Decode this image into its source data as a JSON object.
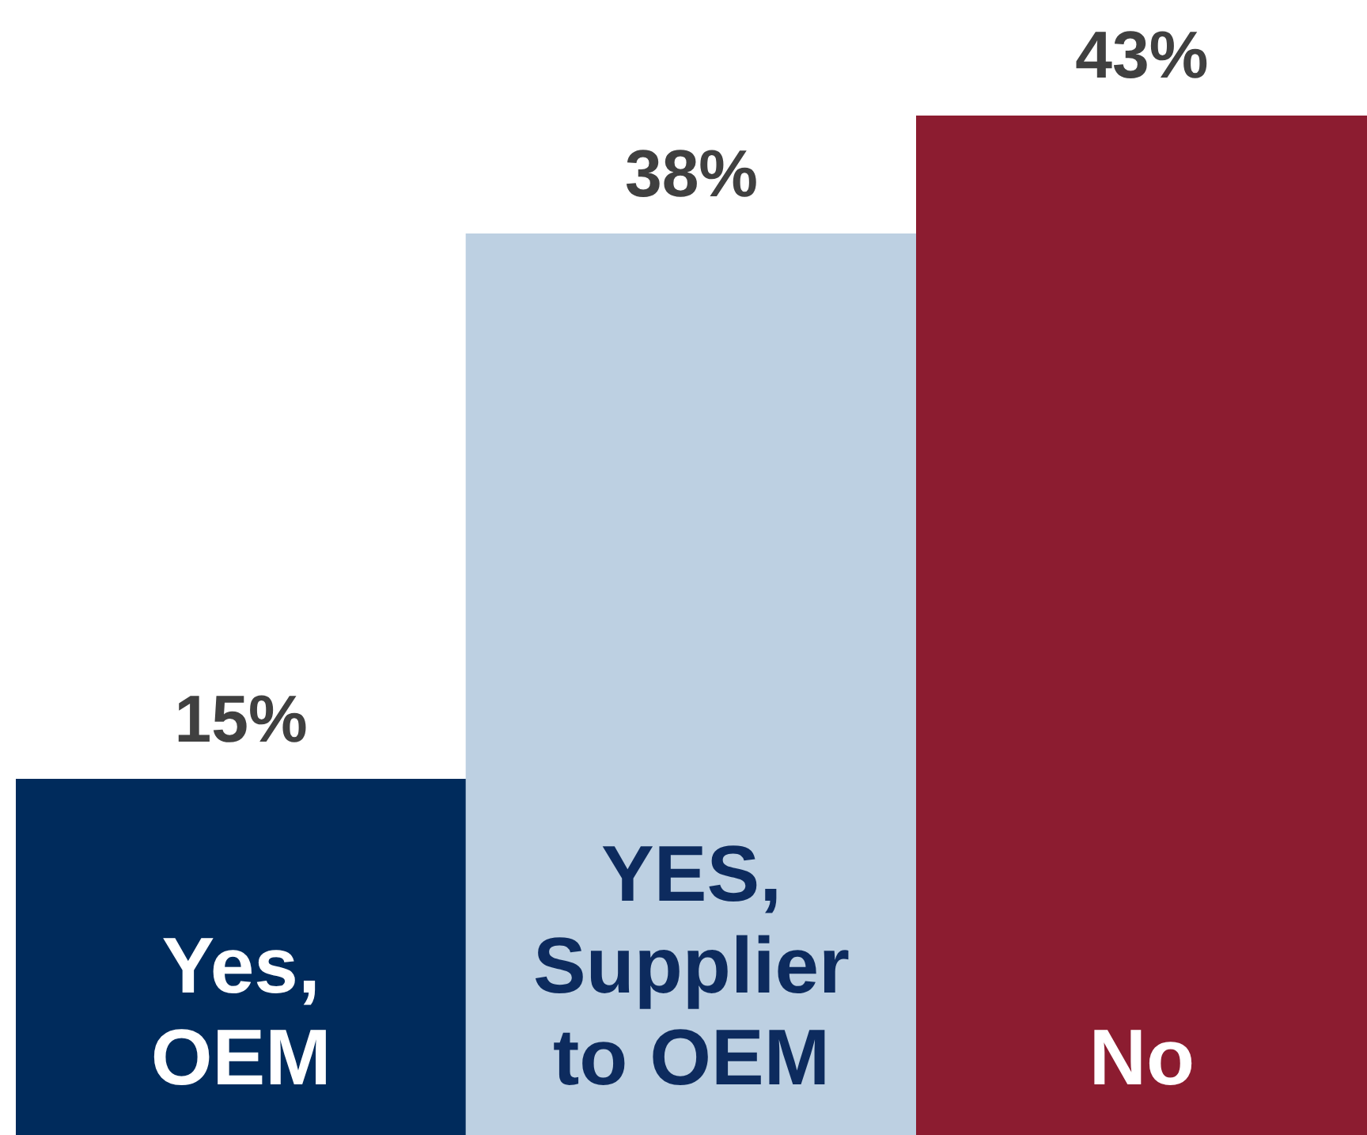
{
  "chart_data": {
    "type": "bar",
    "categories": [
      "Yes, OEM",
      "YES, Supplier to OEM",
      "No"
    ],
    "values": [
      15,
      38,
      43
    ],
    "colors": [
      "#002b5c",
      "#bdd0e2",
      "#8c1c30"
    ],
    "tick_labels": false,
    "value_labels": [
      "15%",
      "38%",
      "43%"
    ],
    "legend": false
  }
}
